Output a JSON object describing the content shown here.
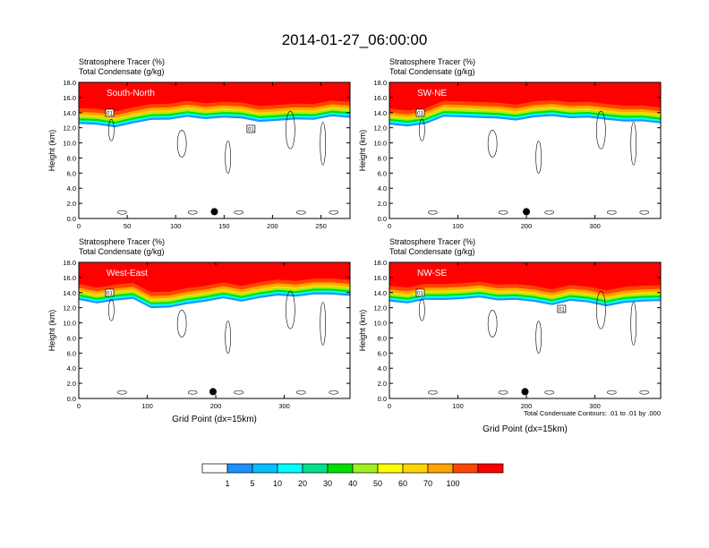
{
  "title": "2014-01-27_06:00:00",
  "subtitle_line1": "Stratosphere Tracer   (%)",
  "subtitle_line2": "Total Condensate   (g/kg)",
  "ylabel": "Height (km)",
  "xlabel": "Grid Point (dx=15km)",
  "contour_note": "Total Condensate Contours: .01 to .01 by .000",
  "colorbar": {
    "levels": [
      "1",
      "5",
      "10",
      "20",
      "30",
      "40",
      "50",
      "60",
      "70",
      "100"
    ],
    "colors": [
      "#ffffff",
      "#1e90ff",
      "#00bfff",
      "#00ffff",
      "#00e08a",
      "#00e000",
      "#a0f020",
      "#ffff00",
      "#ffd700",
      "#ffa500",
      "#ff4500",
      "#ff0000"
    ]
  },
  "chart_data": [
    {
      "type": "heatmap",
      "panel_label": "South-North",
      "xticks": [
        "0",
        "50",
        "100",
        "150",
        "200",
        "250"
      ],
      "yticks": [
        "0.0",
        "2.0",
        "4.0",
        "6.0",
        "8.0",
        "10.0",
        "12.0",
        "14.0",
        "16.0",
        "18.0"
      ],
      "xlim": [
        0,
        280
      ],
      "ylim": [
        0,
        18
      ],
      "marker_x": 140,
      "contour_labels": [
        "01",
        "01"
      ],
      "tropopause_km": [
        14.6,
        14.4,
        14.3,
        14.6,
        15.1,
        15.3,
        15.4,
        15.3,
        15.5,
        15.2,
        15.0,
        15.0,
        15.1,
        15.3,
        15.5,
        15.4
      ]
    },
    {
      "type": "heatmap",
      "panel_label": "SW-NE",
      "xticks": [
        "0",
        "100",
        "200",
        "300"
      ],
      "yticks": [
        "0.0",
        "2.0",
        "4.0",
        "6.0",
        "8.0",
        "10.0",
        "12.0",
        "14.0",
        "16.0",
        "18.0"
      ],
      "xlim": [
        0,
        396
      ],
      "ylim": [
        0,
        18
      ],
      "marker_x": 200,
      "contour_labels": [
        "01"
      ],
      "tropopause_km": [
        14.4,
        14.3,
        14.7,
        15.4,
        15.6,
        15.4,
        15.2,
        15.2,
        15.4,
        15.6,
        15.5,
        15.3,
        15.2,
        15.0,
        14.8,
        14.8
      ]
    },
    {
      "type": "heatmap",
      "panel_label": "West-East",
      "xticks": [
        "0",
        "100",
        "200",
        "300"
      ],
      "yticks": [
        "0.0",
        "2.0",
        "4.0",
        "6.0",
        "8.0",
        "10.0",
        "12.0",
        "14.0",
        "16.0",
        "18.0"
      ],
      "xlim": [
        0,
        396
      ],
      "ylim": [
        0,
        18
      ],
      "marker_x": 196,
      "contour_labels": [
        "01"
      ],
      "tropopause_km": [
        15.0,
        14.8,
        15.0,
        15.2,
        14.2,
        14.0,
        14.6,
        15.0,
        15.2,
        15.0,
        15.4,
        15.6,
        15.7,
        15.8,
        15.8,
        15.8
      ]
    },
    {
      "type": "heatmap",
      "panel_label": "NW-SE",
      "xticks": [
        "0",
        "100",
        "200",
        "300"
      ],
      "yticks": [
        "0.0",
        "2.0",
        "4.0",
        "6.0",
        "8.0",
        "10.0",
        "12.0",
        "14.0",
        "16.0",
        "18.0"
      ],
      "xlim": [
        0,
        396
      ],
      "ylim": [
        0,
        18
      ],
      "marker_x": 198,
      "contour_labels": [
        "01",
        "01"
      ],
      "tropopause_km": [
        14.9,
        14.8,
        15.0,
        15.2,
        15.3,
        15.3,
        15.2,
        15.1,
        14.8,
        14.6,
        14.9,
        14.8,
        14.4,
        14.6,
        15.0,
        15.0
      ]
    }
  ]
}
